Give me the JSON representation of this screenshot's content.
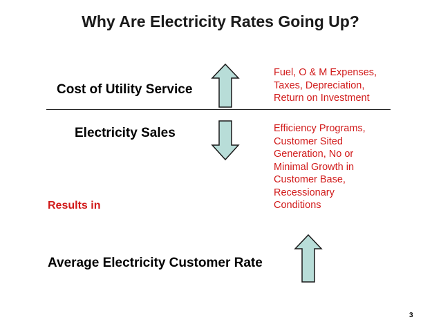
{
  "slide": {
    "title": "Why Are Electricity Rates Going Up?",
    "cost_label": "Cost of Utility Service",
    "sales_label": "Electricity Sales",
    "results_label": "Results in",
    "rate_label": "Average Electricity Customer Rate",
    "cost_drivers": [
      "Fuel, O & M Expenses,",
      "Taxes, Depreciation,",
      "Return on Investment"
    ],
    "sales_drivers": [
      "Efficiency Programs,",
      "Customer Sited",
      "Generation, No or",
      "Minimal Growth in",
      "Customer Base,",
      "Recessionary",
      "Conditions"
    ],
    "page_number": "3"
  },
  "colors": {
    "arrow_fill": "#b8ddd8",
    "arrow_stroke": "#1a1a1a",
    "accent_red": "#d11a1a"
  },
  "icons": {
    "cost_arrow": "up-arrow-icon",
    "sales_arrow": "down-arrow-icon",
    "rate_arrow": "up-arrow-icon"
  }
}
